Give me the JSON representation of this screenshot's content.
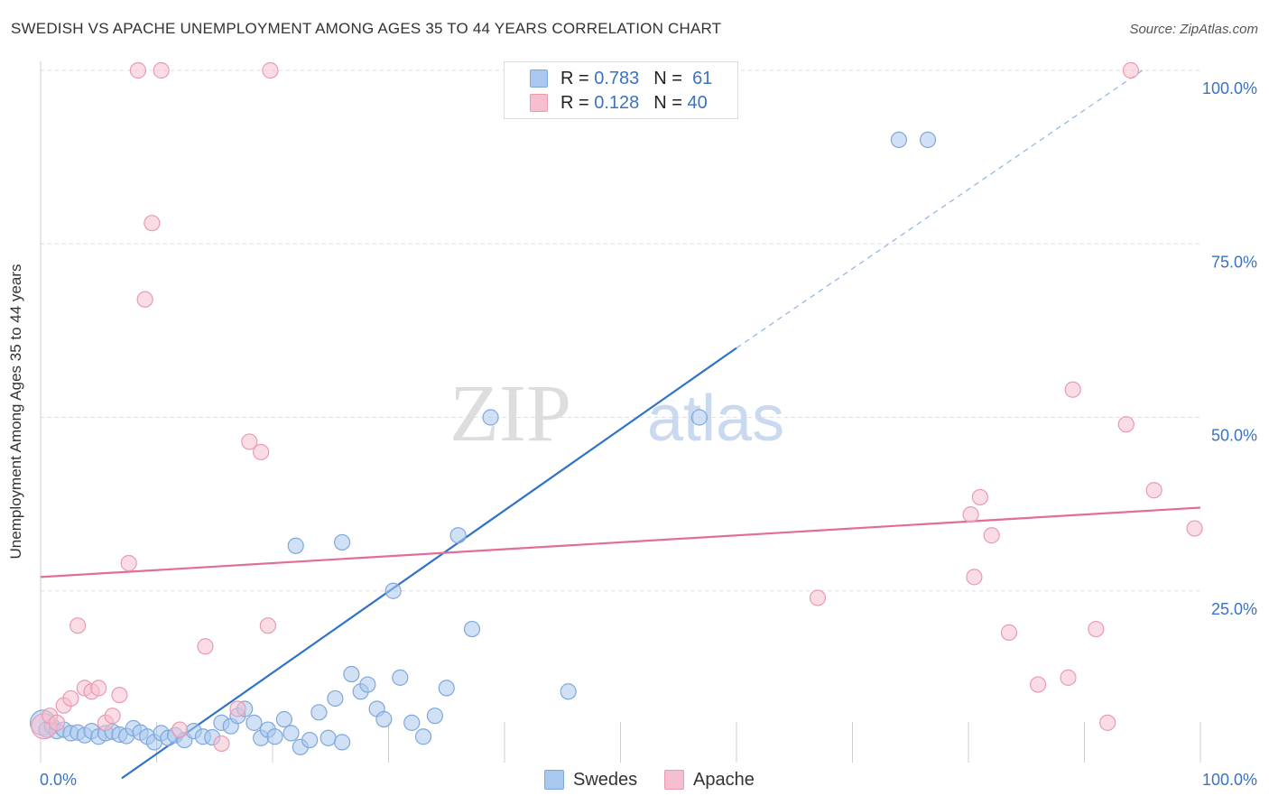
{
  "header": {
    "title": "SWEDISH VS APACHE UNEMPLOYMENT AMONG AGES 35 TO 44 YEARS CORRELATION CHART",
    "source": "Source: ZipAtlas.com"
  },
  "watermark": {
    "zip": "ZIP",
    "atlas": "atlas"
  },
  "legend": {
    "rows": [
      {
        "r_label": "R =",
        "r_value": "0.783",
        "n_label": "N =",
        "n_value": "61"
      },
      {
        "r_label": "R =",
        "r_value": "0.128",
        "n_label": "N =",
        "n_value": "40"
      }
    ],
    "bottom": [
      "Swedes",
      "Apache"
    ]
  },
  "colors": {
    "blue_fill": "#a9c8ef",
    "blue_stroke": "#7fa8da",
    "blue_line": "#2f72c8",
    "pink_fill": "#f6bfcf",
    "pink_stroke": "#ea9ab3",
    "pink_line": "#e26d97",
    "tick_label": "#3a72c4",
    "grid": "#dddddd"
  },
  "chart_data": {
    "type": "scatter",
    "title": "SWEDISH VS APACHE UNEMPLOYMENT AMONG AGES 35 TO 44 YEARS CORRELATION CHART",
    "xlabel": "",
    "ylabel": "Unemployment Among Ages 35 to 44 years",
    "xlim": [
      0,
      100
    ],
    "ylim": [
      0,
      100
    ],
    "x_tick_labels": [
      {
        "value": 0,
        "label": "0.0%"
      },
      {
        "value": 100,
        "label": "100.0%"
      }
    ],
    "y_tick_labels": [
      {
        "value": 100,
        "label": "100.0%"
      },
      {
        "value": 75,
        "label": "75.0%"
      },
      {
        "value": 50,
        "label": "50.0%"
      },
      {
        "value": 25,
        "label": "25.0%"
      }
    ],
    "grid": true,
    "series": [
      {
        "name": "Swedes",
        "R": 0.783,
        "N": 61,
        "trend": {
          "x0": 7,
          "y0": -2,
          "x1": 60,
          "y1": 60,
          "dashed_to": [
            95,
            100
          ]
        },
        "points": [
          {
            "x": 0.2,
            "y": 6.0,
            "s": 2
          },
          {
            "x": 0.5,
            "y": 5.0,
            "s": 1
          },
          {
            "x": 1.0,
            "y": 5.5
          },
          {
            "x": 1.4,
            "y": 4.8
          },
          {
            "x": 2.0,
            "y": 5.0
          },
          {
            "x": 2.6,
            "y": 4.5
          },
          {
            "x": 3.2,
            "y": 4.6
          },
          {
            "x": 3.8,
            "y": 4.2
          },
          {
            "x": 4.4,
            "y": 4.8
          },
          {
            "x": 5.0,
            "y": 4.0
          },
          {
            "x": 5.6,
            "y": 4.5
          },
          {
            "x": 6.2,
            "y": 4.7
          },
          {
            "x": 6.8,
            "y": 4.3
          },
          {
            "x": 7.4,
            "y": 4.1
          },
          {
            "x": 8.0,
            "y": 5.2
          },
          {
            "x": 8.6,
            "y": 4.6
          },
          {
            "x": 9.2,
            "y": 4.0
          },
          {
            "x": 9.8,
            "y": 3.2
          },
          {
            "x": 10.4,
            "y": 4.5
          },
          {
            "x": 11.0,
            "y": 3.8
          },
          {
            "x": 11.6,
            "y": 4.2
          },
          {
            "x": 12.4,
            "y": 3.5
          },
          {
            "x": 13.2,
            "y": 4.8
          },
          {
            "x": 14.0,
            "y": 4.0
          },
          {
            "x": 14.8,
            "y": 3.9
          },
          {
            "x": 15.6,
            "y": 6.0
          },
          {
            "x": 16.4,
            "y": 5.5
          },
          {
            "x": 17.0,
            "y": 7.0
          },
          {
            "x": 17.6,
            "y": 8.0
          },
          {
            "x": 18.4,
            "y": 6.0
          },
          {
            "x": 19.0,
            "y": 3.8
          },
          {
            "x": 19.6,
            "y": 5.0
          },
          {
            "x": 20.2,
            "y": 4.0
          },
          {
            "x": 21.0,
            "y": 6.5
          },
          {
            "x": 21.6,
            "y": 4.5
          },
          {
            "x": 22.4,
            "y": 2.5
          },
          {
            "x": 23.2,
            "y": 3.5
          },
          {
            "x": 24.0,
            "y": 7.5
          },
          {
            "x": 24.8,
            "y": 3.8
          },
          {
            "x": 25.4,
            "y": 9.5
          },
          {
            "x": 26.0,
            "y": 3.2
          },
          {
            "x": 26.8,
            "y": 13.0
          },
          {
            "x": 27.6,
            "y": 10.5
          },
          {
            "x": 28.2,
            "y": 11.5
          },
          {
            "x": 29.0,
            "y": 8.0
          },
          {
            "x": 29.6,
            "y": 6.5
          },
          {
            "x": 30.4,
            "y": 25.0
          },
          {
            "x": 31.0,
            "y": 12.5
          },
          {
            "x": 32.0,
            "y": 6.0
          },
          {
            "x": 33.0,
            "y": 4.0
          },
          {
            "x": 34.0,
            "y": 7.0
          },
          {
            "x": 35.0,
            "y": 11.0
          },
          {
            "x": 36.0,
            "y": 33.0
          },
          {
            "x": 37.2,
            "y": 19.5
          },
          {
            "x": 22.0,
            "y": 31.5
          },
          {
            "x": 26.0,
            "y": 32.0
          },
          {
            "x": 38.8,
            "y": 50.0
          },
          {
            "x": 45.5,
            "y": 10.5
          },
          {
            "x": 56.8,
            "y": 50.0
          },
          {
            "x": 74.0,
            "y": 90.0
          },
          {
            "x": 76.5,
            "y": 90.0
          }
        ]
      },
      {
        "name": "Apache",
        "R": 0.128,
        "N": 40,
        "trend": {
          "x0": 0,
          "y0": 27,
          "x1": 100,
          "y1": 37
        },
        "points": [
          {
            "x": 0.3,
            "y": 5.5,
            "s": 2
          },
          {
            "x": 0.8,
            "y": 7.0
          },
          {
            "x": 1.4,
            "y": 6.0
          },
          {
            "x": 2.0,
            "y": 8.5
          },
          {
            "x": 2.6,
            "y": 9.5
          },
          {
            "x": 3.2,
            "y": 20.0
          },
          {
            "x": 3.8,
            "y": 11.0
          },
          {
            "x": 4.4,
            "y": 10.5
          },
          {
            "x": 5.0,
            "y": 11.0
          },
          {
            "x": 5.6,
            "y": 6.0
          },
          {
            "x": 6.2,
            "y": 7.0
          },
          {
            "x": 6.8,
            "y": 10.0
          },
          {
            "x": 7.6,
            "y": 29.0
          },
          {
            "x": 8.4,
            "y": 100.0
          },
          {
            "x": 10.4,
            "y": 100.0
          },
          {
            "x": 9.0,
            "y": 67.0
          },
          {
            "x": 9.6,
            "y": 78.0
          },
          {
            "x": 12.0,
            "y": 5.0
          },
          {
            "x": 14.2,
            "y": 17.0
          },
          {
            "x": 15.6,
            "y": 3.0
          },
          {
            "x": 17.0,
            "y": 8.0
          },
          {
            "x": 18.0,
            "y": 46.5
          },
          {
            "x": 19.0,
            "y": 45.0
          },
          {
            "x": 19.6,
            "y": 20.0
          },
          {
            "x": 19.8,
            "y": 100.0
          },
          {
            "x": 67.0,
            "y": 24.0
          },
          {
            "x": 80.2,
            "y": 36.0
          },
          {
            "x": 81.0,
            "y": 38.5
          },
          {
            "x": 82.0,
            "y": 33.0
          },
          {
            "x": 80.5,
            "y": 27.0
          },
          {
            "x": 83.5,
            "y": 19.0
          },
          {
            "x": 86.0,
            "y": 11.5
          },
          {
            "x": 88.6,
            "y": 12.5
          },
          {
            "x": 89.0,
            "y": 54.0
          },
          {
            "x": 91.0,
            "y": 19.5
          },
          {
            "x": 92.0,
            "y": 6.0
          },
          {
            "x": 93.6,
            "y": 49.0
          },
          {
            "x": 96.0,
            "y": 39.5
          },
          {
            "x": 94.0,
            "y": 100.0
          },
          {
            "x": 99.5,
            "y": 34.0
          }
        ]
      }
    ]
  }
}
